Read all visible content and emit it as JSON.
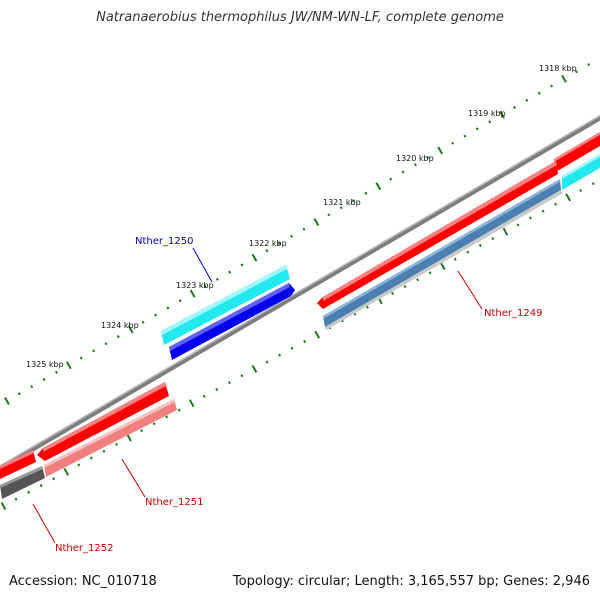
{
  "title": "Natranaerobius thermophilus JW/NM-WN-LF, complete genome",
  "footer": {
    "accession": "Accession: NC_010718",
    "summary": "Topology: circular; Length: 3,165,557 bp; Genes: 2,946"
  },
  "colors": {
    "backbone": "#808080",
    "tick": "#1a7a1a",
    "forward_cds": "#ff0000",
    "reverse_cds": "#0000ee",
    "cyan_feature": "#22e8f0",
    "steel_feature": "#4a7fb0",
    "pink_feature": "#f08080",
    "dark_feature": "#555555",
    "label_red": "#cc0000",
    "label_blue": "#0000cc"
  },
  "ticks": [
    {
      "label": "1318 kbp"
    },
    {
      "label": "1319 kbp"
    },
    {
      "label": "1320 kbp"
    },
    {
      "label": "1321 kbp"
    },
    {
      "label": "1322 kbp"
    },
    {
      "label": "1323 kbp"
    },
    {
      "label": "1324 kbp"
    },
    {
      "label": "1325 kbp"
    }
  ],
  "genes": [
    {
      "name": "Nther_1249",
      "color": "#cc0000"
    },
    {
      "name": "Nther_1250",
      "color": "#0000cc"
    },
    {
      "name": "Nther_1251",
      "color": "#cc0000"
    },
    {
      "name": "Nther_1252",
      "color": "#cc0000"
    }
  ]
}
